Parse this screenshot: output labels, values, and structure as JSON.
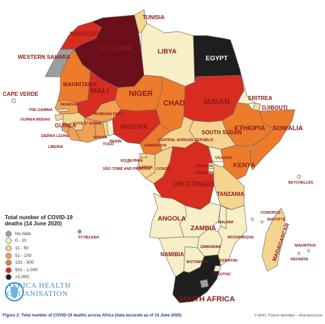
{
  "legend": {
    "title": "Total number of COVID-19 deaths (14 June 2020)",
    "items": [
      {
        "label": "No data",
        "color": "#9e9e9e"
      },
      {
        "label": "0 - 10",
        "color": "#f7f0c6"
      },
      {
        "label": "11 - 50",
        "color": "#f5d48f"
      },
      {
        "label": "51 - 100",
        "color": "#f2a153"
      },
      {
        "label": "101 - 500",
        "color": "#ee7a2b"
      },
      {
        "label": "501 - 1,000",
        "color": "#d72c1f"
      },
      {
        "label": ">1,000",
        "color": "#1e1e1e"
      }
    ]
  },
  "logo": {
    "line1": "AFRICA HEALTH",
    "line2": "ORGANISATION"
  },
  "caption": "Figure 2: Total number of COVID-19 deaths across Africa (data accurate as of 14 June 2020)",
  "credit": "© AHO, Patrick Akindipe – Astrophysicist",
  "map": {
    "morocco": {
      "name": "MOROCCO",
      "fill": "#d72c1f"
    },
    "western_sahara": {
      "name": "WESTERN SAHARA",
      "fill": "#9e9e9e"
    },
    "algeria": {
      "name": "ALGERIA",
      "fill": "#6b0f1a"
    },
    "tunisia": {
      "name": "TUNISIA",
      "fill": "#f5d48f"
    },
    "libya": {
      "name": "LIBYA",
      "fill": "#f7f0c6"
    },
    "egypt": {
      "name": "EGYPT",
      "fill": "#1e1e1e"
    },
    "mauritania": {
      "name": "MAURITANIA",
      "fill": "#ee7a2b"
    },
    "mali": {
      "name": "MALI",
      "fill": "#d72c1f"
    },
    "niger": {
      "name": "NIGER",
      "fill": "#ee7a2b"
    },
    "chad": {
      "name": "CHAD",
      "fill": "#ee7a2b"
    },
    "sudan": {
      "name": "SUDAN",
      "fill": "#d72c1f"
    },
    "eritrea": {
      "name": "ERITREA",
      "fill": "#f7f0c6"
    },
    "djibouti": {
      "name": "DJIBOUTI",
      "fill": "#f5d48f"
    },
    "ethiopia": {
      "name": "ETHIOPIA",
      "fill": "#ee7a2b"
    },
    "somalia": {
      "name": "SOMALIA",
      "fill": "#ee7a2b"
    },
    "south_sudan": {
      "name": "SOUTH SUDAN",
      "fill": "#f5d48f"
    },
    "car": {
      "name": "CENTRAL AFRICAN REPUBLIC",
      "fill": "#f5d48f"
    },
    "nigeria": {
      "name": "NIGERIA",
      "fill": "#d72c1f"
    },
    "cameroon": {
      "name": "CAMEROON",
      "fill": "#ee7a2b"
    },
    "senegal": {
      "name": "SENEGAL",
      "fill": "#f2a153"
    },
    "gambia": {
      "name": "THE GAMBIA",
      "fill": "#f7f0c6"
    },
    "guinea_bissau": {
      "name": "GUINEA BISSAU",
      "fill": "#f5d48f"
    },
    "guinea": {
      "name": "GUINEA",
      "fill": "#f5d48f"
    },
    "sierra_leone": {
      "name": "SIERRA LEONE",
      "fill": "#f2a153"
    },
    "liberia": {
      "name": "LIBERIA",
      "fill": "#f2a153"
    },
    "cote_divoire": {
      "name": "COTE D' IVOIRE",
      "fill": "#f2a153"
    },
    "burkina_faso": {
      "name": "BURKINA FASO",
      "fill": "#f2a153"
    },
    "ghana": {
      "name": "GHANA",
      "fill": "#f2a153"
    },
    "togo": {
      "name": "TOGO",
      "fill": "#f5d48f"
    },
    "benin": {
      "name": "BENIN",
      "fill": "#f7f0c6"
    },
    "eq_guinea": {
      "name": "EQ. GUINEA",
      "fill": "#f5d48f"
    },
    "sao_tome": {
      "name": "SÃO TOMÉ AND PRINCIPE",
      "fill": "#f5d48f"
    },
    "gabon": {
      "name": "GABON",
      "fill": "#f5d48f"
    },
    "congo": {
      "name": "CONGO",
      "fill": "#f5d48f"
    },
    "dr_congo": {
      "name": "DR CONGO",
      "fill": "#d72c1f"
    },
    "uganda": {
      "name": "UGANDA",
      "fill": "#f7f0c6"
    },
    "kenya": {
      "name": "KENYA",
      "fill": "#ee7a2b"
    },
    "rwanda": {
      "name": "RWANDA",
      "fill": "#f7f0c6"
    },
    "burundi": {
      "name": "BURUNDI",
      "fill": "#f7f0c6"
    },
    "tanzania": {
      "name": "TANZANIA",
      "fill": "#f5d48f"
    },
    "angola": {
      "name": "ANGOLA",
      "fill": "#f7f0c6"
    },
    "zambia": {
      "name": "ZAMBIA",
      "fill": "#f7f0c6"
    },
    "malawi": {
      "name": "MALAWI",
      "fill": "#f7f0c6"
    },
    "mozambique": {
      "name": "MOZAMBIQUE",
      "fill": "#f7f0c6"
    },
    "zimbabwe": {
      "name": "ZIMBABWE",
      "fill": "#f7f0c6"
    },
    "namibia": {
      "name": "NAMIBIA",
      "fill": "#f7f0c6"
    },
    "botswana": {
      "name": "BOTSWANA",
      "fill": "#f7f0c6"
    },
    "eswatini": {
      "name": "ESWATINI",
      "fill": "#f7f0c6"
    },
    "lesotho": {
      "name": "LESOTHO",
      "fill": "#9e9e9e"
    },
    "south_africa": {
      "name": "SOUTH AFRICA",
      "fill": "#1e1e1e"
    },
    "madagascar": {
      "name": "MADAGASCAR",
      "fill": "#f5d48f"
    },
    "cape_verde": {
      "name": "CAPE VERDE",
      "fill": "#f7f0c6"
    },
    "st_helena": {
      "name": "ST.HELENA",
      "fill": "#9e9e9e"
    },
    "seychelles": {
      "name": "SEYCHELLES",
      "fill": "#f7f0c6"
    },
    "comoros": {
      "name": "COMOROS",
      "fill": "#f7f0c6"
    },
    "mayotte": {
      "name": "MAYOTTE",
      "fill": "#f7f0c6"
    },
    "mauritius": {
      "name": "MAURITIUS",
      "fill": "#f7f0c6"
    },
    "reunion": {
      "name": "REUNION",
      "fill": "#f7f0c6"
    }
  }
}
